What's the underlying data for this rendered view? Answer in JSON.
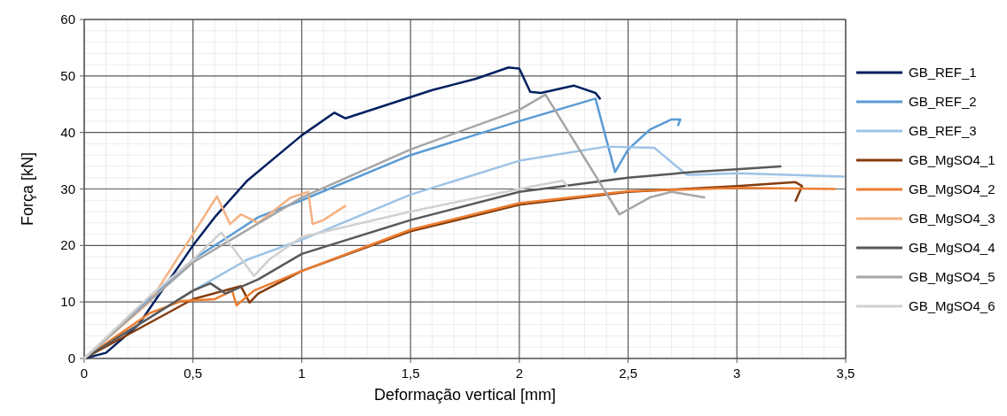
{
  "chart_data": {
    "type": "line",
    "xlabel": "Deformação vertical [mm]",
    "ylabel": "Força [kN]",
    "xlim": [
      0,
      3.5
    ],
    "ylim": [
      0,
      60
    ],
    "xticks": [
      0,
      {
        "value": 0.5,
        "label": "0,5"
      },
      1,
      {
        "value": 1.5,
        "label": "1,5"
      },
      2,
      {
        "value": 2.5,
        "label": "2,5"
      },
      3,
      {
        "value": 3.5,
        "label": "3,5"
      }
    ],
    "yticks": [
      0,
      10,
      20,
      30,
      40,
      50,
      60
    ],
    "grid": true,
    "legend": "right",
    "line_style": "solid",
    "series": [
      {
        "name": "GB_REF_1",
        "color": "#002060",
        "x": [
          0,
          0.1,
          0.25,
          0.5,
          0.6,
          0.75,
          1.0,
          1.15,
          1.2,
          1.4,
          1.6,
          1.8,
          1.95,
          2.0,
          2.05,
          2.1,
          2.25,
          2.35,
          2.37
        ],
        "values": [
          0,
          1,
          6,
          20,
          25,
          31.5,
          39.5,
          43.5,
          42.5,
          45,
          47.5,
          49.5,
          51.5,
          51.3,
          47.2,
          47,
          48.3,
          47,
          46
        ]
      },
      {
        "name": "GB_REF_2",
        "color": "#5b9bd5",
        "x": [
          0,
          0.5,
          0.8,
          1.0,
          1.5,
          2.0,
          2.35,
          2.44,
          2.5,
          2.6,
          2.7,
          2.74,
          2.73
        ],
        "values": [
          0,
          17.5,
          25,
          28,
          36,
          42,
          46,
          33,
          37,
          40.5,
          42.3,
          42.3,
          41.3
        ]
      },
      {
        "name": "GB_REF_3",
        "color": "#9dc3e6",
        "x": [
          0,
          0.5,
          0.75,
          1,
          1.5,
          2,
          2.4,
          2.62,
          2.77,
          2.8,
          3.0,
          3.49
        ],
        "values": [
          0,
          12,
          17.5,
          21,
          29,
          35,
          37.5,
          37.3,
          32.5,
          32.5,
          32.8,
          32.2
        ]
      },
      {
        "name": "GB_MgSO4_1",
        "color": "#843c0c",
        "x": [
          0,
          0.5,
          0.72,
          0.76,
          0.8,
          1,
          1.5,
          2,
          2.5,
          3,
          3.27,
          3.3,
          3.27
        ],
        "values": [
          0,
          10.5,
          12.8,
          9.9,
          11.5,
          15.5,
          22.5,
          27.2,
          29.5,
          30.5,
          31.2,
          30.5,
          27.9
        ]
      },
      {
        "name": "GB_MgSO4_2",
        "color": "#ed7d31",
        "x": [
          0,
          0.3,
          0.45,
          0.6,
          0.68,
          0.7,
          0.78,
          1,
          1.5,
          2,
          2.5,
          3,
          3.45
        ],
        "values": [
          0,
          8,
          10.2,
          10.5,
          12,
          9.4,
          12,
          15.5,
          22.8,
          27.5,
          29.6,
          30.2,
          30
        ]
      },
      {
        "name": "GB_MgSO4_3",
        "color": "#f4b183",
        "x": [
          0,
          0.3,
          0.5,
          0.61,
          0.67,
          0.72,
          0.8,
          0.95,
          1.03,
          1.05,
          1.1,
          1.2
        ],
        "values": [
          0,
          10,
          22,
          28.7,
          23.8,
          25.5,
          24,
          28.5,
          29.5,
          23.8,
          24.5,
          27
        ]
      },
      {
        "name": "GB_MgSO4_4",
        "color": "#595959",
        "x": [
          0,
          0.5,
          0.58,
          0.65,
          0.8,
          1,
          1.5,
          2,
          2.5,
          2.8,
          3,
          3.2
        ],
        "values": [
          0,
          12,
          13.3,
          11.5,
          14,
          18.5,
          24.5,
          29.5,
          32,
          33,
          33.5,
          34
        ]
      },
      {
        "name": "GB_MgSO4_5",
        "color": "#a6a6a6",
        "x": [
          0,
          0.5,
          1,
          1.5,
          2,
          2.12,
          2.46,
          2.6,
          2.7,
          2.85
        ],
        "values": [
          0,
          17,
          28.5,
          37,
          44,
          46.7,
          25.5,
          28.5,
          29.5,
          28.5
        ]
      },
      {
        "name": "GB_MgSO4_6",
        "color": "#d0d0d0",
        "x": [
          0,
          0.3,
          0.5,
          0.63,
          0.78,
          0.85,
          1,
          1.5,
          2,
          2.2,
          2.22
        ],
        "values": [
          0,
          11,
          17.5,
          22.3,
          14.6,
          17.5,
          21.5,
          26,
          30,
          31.5,
          30.5
        ]
      }
    ]
  }
}
